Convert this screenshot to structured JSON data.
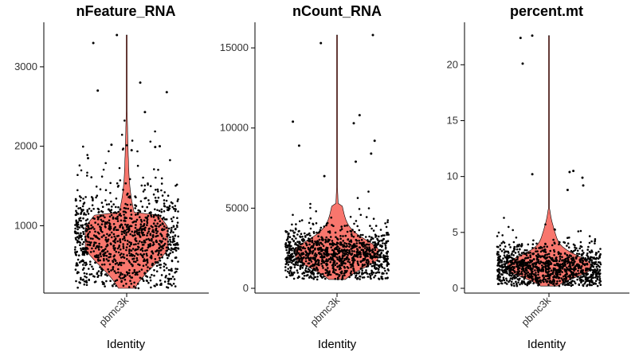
{
  "colors": {
    "violin_fill": "#F8766D",
    "points": "#000000"
  },
  "chart_data": [
    {
      "type": "violin",
      "title": "nFeature_RNA",
      "xlabel": "Identity",
      "ylabel": "",
      "categories": [
        "pbmc3k"
      ],
      "yticks": [
        1000,
        2000,
        3000
      ],
      "ytick_labels": [
        "1000",
        "2000",
        "3000"
      ],
      "ylim": [
        212,
        3420
      ],
      "summary": {
        "min": 212,
        "median": 820,
        "max": 3400
      },
      "outliers": [
        3400,
        3300,
        2800,
        2700,
        2680,
        2430,
        2020,
        2000,
        1990,
        1950,
        1850
      ]
    },
    {
      "type": "violin",
      "title": "nCount_RNA",
      "xlabel": "Identity",
      "ylabel": "",
      "categories": [
        "pbmc3k"
      ],
      "yticks": [
        0,
        5000,
        10000,
        15000
      ],
      "ytick_labels": [
        "0",
        "5000",
        "10000",
        "15000"
      ],
      "ylim": [
        0,
        15900
      ],
      "summary": {
        "min": 550,
        "median": 2100,
        "max": 15800
      },
      "outliers": [
        15800,
        15300,
        10800,
        10400,
        10300,
        9200,
        8900,
        8400,
        7900,
        7000
      ]
    },
    {
      "type": "violin",
      "title": "percent.mt",
      "xlabel": "Identity",
      "ylabel": "",
      "categories": [
        "pbmc3k"
      ],
      "yticks": [
        0,
        5,
        10,
        15,
        20
      ],
      "ytick_labels": [
        "0",
        "5",
        "10",
        "15",
        "20"
      ],
      "ylim": [
        0,
        22.8
      ],
      "summary": {
        "min": 0.2,
        "median": 1.9,
        "max": 22.6
      },
      "outliers": [
        22.6,
        22.4,
        20.1,
        10.5,
        10.4,
        10.2,
        9.9,
        9.2,
        8.8
      ]
    }
  ]
}
